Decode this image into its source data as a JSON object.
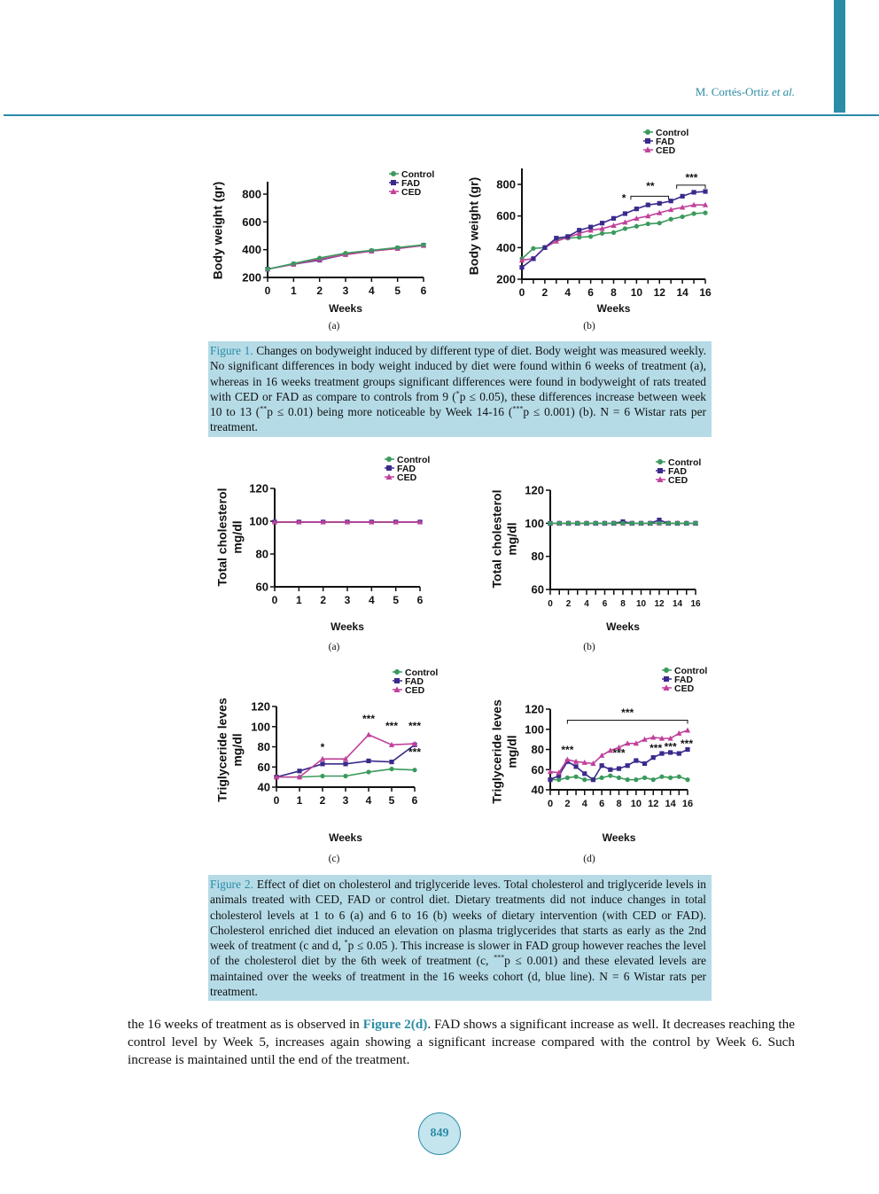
{
  "header": {
    "author": "M. Cortés-Ortiz",
    "etal": "et al."
  },
  "colors": {
    "accent": "#2b8ca6",
    "caption_bg": "#b5dbe7",
    "Control": "#3a9a5c",
    "FAD": "#3b2a8c",
    "CED": "#c0409a"
  },
  "figure1": {
    "panels": [
      "(a)",
      "(b)"
    ],
    "caption_label": "Figure 1.",
    "caption_parts": [
      " Changes on bodyweight induced by different type of diet. Body weight was measured weekly. No significant differences in body weight induced by diet were found within 6 weeks of treatment (a), whereas in 16 weeks treatment groups significant differences were found in bodyweight of rats treated with CED or FAD as compare to controls from 9 (",
      "*",
      "p ≤ 0.05), these differences increase between week 10 to 13 (",
      "**",
      "p ≤ 0.01) being more noticeable by Week 14-16 (",
      "***",
      "p ≤ 0.001) (b). N = 6 Wistar rats per treatment."
    ]
  },
  "figure2": {
    "panels": [
      "(a)",
      "(b)",
      "(c)",
      "(d)"
    ],
    "caption_label": "Figure 2.",
    "caption_parts": [
      " Effect of diet on cholesterol and triglyceride leves. Total cholesterol and triglyceride levels in animals treated with CED, FAD or control diet. Dietary treatments did not induce changes in total cholesterol levels at 1 to 6 (a) and 6 to 16 (b) weeks of dietary intervention (with CED or FAD). Cholesterol enriched diet induced an elevation on plasma triglycerides that starts as early as the 2nd week of treatment (c and d, ",
      "*",
      "p ≤ 0.05 ). This increase is slower in FAD group however reaches the level of the cholesterol diet by the 6th week of treatment (c, ",
      "***",
      "p ≤ 0.001) and these elevated levels are maintained over the weeks of treatment in the 16 weeks cohort (d, blue line). N = 6 Wistar rats per treatment."
    ]
  },
  "body": {
    "before_link": "the 16 weeks of treatment as is observed in ",
    "link": "Figure 2(d)",
    "after_link": ". FAD shows a significant increase as well. It decreases reaching the control level by Week 5, increases again showing a significant increase compared with the control by Week 6. Such increase is maintained until the end of the treatment."
  },
  "page_number": "849",
  "chart_data": [
    {
      "id": "fig1a",
      "type": "line",
      "xlabel": "Weeks",
      "ylabel": [
        "Body weight (gr)"
      ],
      "xlim": [
        0,
        6
      ],
      "ylim": [
        200,
        800
      ],
      "xticks": [
        0,
        1,
        2,
        3,
        4,
        5,
        6
      ],
      "xticklabels": [
        0,
        1,
        2,
        3,
        4,
        5,
        6
      ],
      "yticks": [
        200,
        400,
        600,
        800
      ],
      "legend": "top-right",
      "x": [
        0,
        1,
        2,
        3,
        4,
        5,
        6
      ],
      "series": [
        {
          "name": "FAD",
          "values": [
            260,
            295,
            325,
            365,
            390,
            410,
            432
          ]
        },
        {
          "name": "CED",
          "values": [
            260,
            295,
            330,
            365,
            390,
            408,
            430
          ]
        },
        {
          "name": "Control",
          "values": [
            260,
            300,
            340,
            375,
            395,
            415,
            435
          ]
        }
      ],
      "annotations": []
    },
    {
      "id": "fig1b",
      "type": "line",
      "xlabel": "Weeks",
      "ylabel": [
        "Body weight (gr)"
      ],
      "xlim": [
        0,
        16
      ],
      "ylim": [
        200,
        800
      ],
      "xticks": [
        0,
        1,
        2,
        3,
        4,
        5,
        6,
        7,
        8,
        9,
        10,
        11,
        12,
        13,
        14,
        15,
        16
      ],
      "xticklabels": [
        0,
        2,
        4,
        6,
        8,
        10,
        12,
        14,
        16
      ],
      "yticks": [
        200,
        400,
        600,
        800
      ],
      "legend": "top-right",
      "x": [
        0,
        1,
        2,
        3,
        4,
        5,
        6,
        7,
        8,
        9,
        10,
        11,
        12,
        13,
        14,
        15,
        16
      ],
      "series": [
        {
          "name": "Control",
          "values": [
            330,
            395,
            400,
            455,
            460,
            465,
            470,
            490,
            495,
            520,
            535,
            550,
            555,
            580,
            595,
            615,
            620
          ]
        },
        {
          "name": "CED",
          "values": [
            320,
            330,
            400,
            440,
            465,
            490,
            510,
            520,
            540,
            560,
            585,
            600,
            620,
            640,
            655,
            670,
            670
          ]
        },
        {
          "name": "FAD",
          "values": [
            275,
            330,
            400,
            460,
            470,
            510,
            530,
            555,
            585,
            615,
            645,
            670,
            680,
            695,
            725,
            750,
            755
          ]
        }
      ],
      "annotations": [
        {
          "text": "*",
          "x": 8.9,
          "y": 690
        },
        {
          "text": "**",
          "x": 11.2,
          "y": 765,
          "bracket": [
            9.5,
            12.8,
            725
          ]
        },
        {
          "text": "***",
          "x": 14.8,
          "y": 820,
          "bracket": [
            13.5,
            16,
            795
          ]
        }
      ]
    },
    {
      "id": "fig2a",
      "type": "line",
      "xlabel": "Weeks",
      "ylabel": [
        "Total cholesterol",
        "mg/dl"
      ],
      "xlim": [
        0,
        6
      ],
      "ylim": [
        60,
        120
      ],
      "xticks": [
        0,
        1,
        2,
        3,
        4,
        5,
        6
      ],
      "xticklabels": [
        0,
        1,
        2,
        3,
        4,
        5,
        6
      ],
      "yticks": [
        60,
        80,
        100,
        120
      ],
      "legend": "top-right",
      "x": [
        0,
        1,
        2,
        3,
        4,
        5,
        6
      ],
      "series": [
        {
          "name": "Control",
          "values": [
            99.5,
            99.5,
            99.5,
            99.5,
            99.5,
            99.5,
            99.5
          ]
        },
        {
          "name": "FAD",
          "values": [
            99.5,
            99.5,
            99.5,
            99.5,
            99.5,
            99.5,
            99.5
          ]
        },
        {
          "name": "CED",
          "values": [
            99.5,
            99.5,
            99.5,
            99.5,
            99.5,
            99.5,
            99.5
          ]
        }
      ],
      "annotations": []
    },
    {
      "id": "fig2b",
      "type": "line",
      "xlabel": "Weeks",
      "ylabel": [
        "Total cholesterol",
        "mg/dl"
      ],
      "xlim": [
        0,
        16
      ],
      "ylim": [
        60,
        120
      ],
      "xticks": [
        0,
        1,
        2,
        3,
        4,
        5,
        6,
        7,
        8,
        9,
        10,
        11,
        12,
        13,
        14,
        15,
        16
      ],
      "xticklabels": [
        0,
        2,
        4,
        6,
        8,
        10,
        12,
        14,
        16
      ],
      "yticks": [
        60,
        80,
        100,
        120
      ],
      "legend": "top-right",
      "x": [
        0,
        1,
        2,
        3,
        4,
        5,
        6,
        7,
        8,
        9,
        10,
        11,
        12,
        13,
        14,
        15,
        16
      ],
      "series": [
        {
          "name": "CED",
          "values": [
            100,
            100,
            100,
            100,
            100,
            100,
            100,
            100,
            100,
            100,
            100,
            100,
            100,
            100,
            100,
            100,
            100
          ]
        },
        {
          "name": "FAD",
          "values": [
            100,
            100,
            100,
            100,
            100,
            100,
            100,
            100,
            101,
            100,
            100,
            100,
            102,
            100,
            100,
            100,
            100
          ]
        },
        {
          "name": "Control",
          "values": [
            100,
            100,
            100,
            100,
            100,
            100,
            100,
            100,
            100,
            100,
            100,
            100,
            100,
            100,
            100,
            100,
            100
          ]
        }
      ],
      "annotations": []
    },
    {
      "id": "fig2c",
      "type": "line",
      "xlabel": "Weeks",
      "ylabel": [
        "Triglyceride leves",
        "mg/dl"
      ],
      "xlim": [
        0,
        6
      ],
      "ylim": [
        40,
        120
      ],
      "xticks": [
        0,
        1,
        2,
        3,
        4,
        5,
        6
      ],
      "xticklabels": [
        0,
        1,
        2,
        3,
        4,
        5,
        6
      ],
      "yticks": [
        40,
        60,
        80,
        100,
        120
      ],
      "legend": "top-right",
      "x": [
        0,
        1,
        2,
        3,
        4,
        5,
        6
      ],
      "series": [
        {
          "name": "Control",
          "values": [
            50,
            50,
            51,
            51,
            55,
            58,
            57
          ]
        },
        {
          "name": "FAD",
          "values": [
            50,
            56,
            63,
            63,
            66,
            65,
            82
          ]
        },
        {
          "name": "CED",
          "values": [
            50,
            50,
            68,
            68,
            92,
            82,
            83
          ]
        }
      ],
      "annotations": [
        {
          "text": "*",
          "x": 2,
          "y": 76
        },
        {
          "text": "***",
          "x": 4,
          "y": 104
        },
        {
          "text": "***",
          "x": 5,
          "y": 97
        },
        {
          "text": "***",
          "x": 6,
          "y": 97
        },
        {
          "text": "***",
          "x": 6,
          "y": 71
        }
      ]
    },
    {
      "id": "fig2d",
      "type": "line",
      "xlabel": "Weeks",
      "ylabel": [
        "Triglyceride leves",
        "mg/dl"
      ],
      "xlim": [
        0,
        16
      ],
      "ylim": [
        40,
        120
      ],
      "xticks": [
        0,
        1,
        2,
        3,
        4,
        5,
        6,
        7,
        8,
        9,
        10,
        11,
        12,
        13,
        14,
        15,
        16
      ],
      "xticklabels": [
        0,
        2,
        4,
        6,
        8,
        10,
        12,
        14,
        16
      ],
      "yticks": [
        40,
        60,
        80,
        100,
        120
      ],
      "legend": "top-right",
      "x": [
        0,
        1,
        2,
        3,
        4,
        5,
        6,
        7,
        8,
        9,
        10,
        11,
        12,
        13,
        14,
        15,
        16
      ],
      "series": [
        {
          "name": "Control",
          "values": [
            50,
            50,
            52,
            53,
            50,
            50,
            52,
            54,
            52,
            50,
            50,
            52,
            50,
            53,
            52,
            53,
            50
          ]
        },
        {
          "name": "FAD",
          "values": [
            50,
            54,
            68,
            63,
            56,
            50,
            64,
            60,
            61,
            64,
            69,
            66,
            72,
            76,
            77,
            76,
            80
          ]
        },
        {
          "name": "CED",
          "values": [
            58,
            57,
            70,
            68,
            67,
            66,
            74,
            79,
            82,
            86,
            86,
            90,
            92,
            91,
            91,
            96,
            99
          ]
        }
      ],
      "annotations": [
        {
          "text": "***",
          "x": 9,
          "y": 113,
          "bracket": [
            2,
            16,
            109
          ]
        },
        {
          "text": "***",
          "x": 2,
          "y": 76
        },
        {
          "text": "***",
          "x": 8,
          "y": 73
        },
        {
          "text": "***",
          "x": 12.3,
          "y": 78
        },
        {
          "text": "***",
          "x": 14,
          "y": 79
        },
        {
          "text": "***",
          "x": 15.9,
          "y": 82
        }
      ]
    }
  ]
}
